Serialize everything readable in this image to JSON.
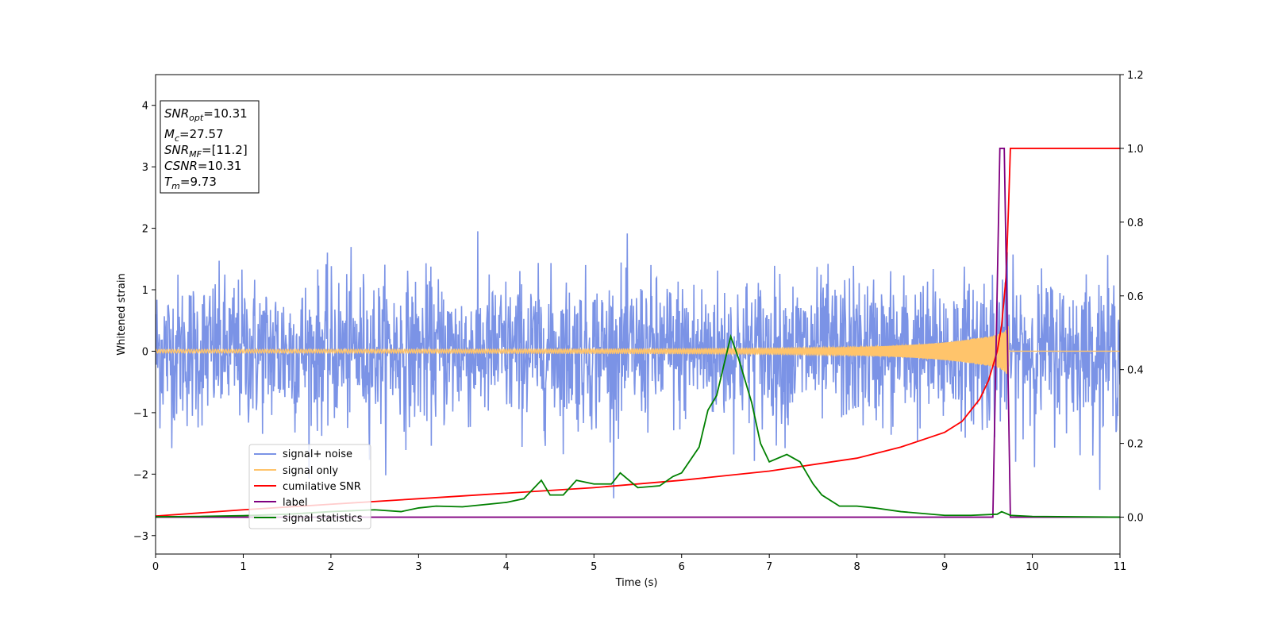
{
  "chart_data": {
    "type": "line",
    "xlabel": "Time (s)",
    "ylabel": "Whitened strain",
    "xlim": [
      0,
      11
    ],
    "ylim_left": [
      -3.3,
      4.5
    ],
    "ylim_right": [
      -0.1,
      1.2
    ],
    "x_ticks": [
      "0",
      "1",
      "2",
      "3",
      "4",
      "5",
      "6",
      "7",
      "8",
      "9",
      "10",
      "11"
    ],
    "y_ticks_left": [
      "−3",
      "−2",
      "−1",
      "0",
      "1",
      "2",
      "3",
      "4"
    ],
    "y_ticks_right": [
      "0.0",
      "0.2",
      "0.4",
      "0.6",
      "0.8",
      "1.0",
      "1.2"
    ],
    "info_box": {
      "snr_opt": {
        "sym": "SNR",
        "sub": "opt",
        "value": "=10.31"
      },
      "mc": {
        "sym": "M",
        "sub": "c",
        "value": "=27.57"
      },
      "snr_mf": {
        "sym": "SNR",
        "sub": "MF",
        "value": "=[11.2]"
      },
      "csnr": {
        "sym": "CSNR",
        "sub": "",
        "value": "=10.31"
      },
      "tm": {
        "sym": "T",
        "sub": "m",
        "value": "=9.73"
      }
    },
    "legend": {
      "signal_noise": "signal+ noise",
      "signal_only": "signal only",
      "cumulative_snr": "cumilative SNR",
      "label": "label",
      "signal_statistics": "signal statistics"
    },
    "series": [
      {
        "name": "signal+ noise",
        "axis": "left",
        "color": "#7b93e6",
        "noise_sigma": 0.6,
        "sample_rate": 200
      },
      {
        "name": "signal only",
        "axis": "left",
        "color": "#ffc46b",
        "chirp_end": 9.73,
        "peak_amplitude": 0.45
      },
      {
        "name": "cumilative SNR",
        "axis": "right",
        "color": "#ff0000",
        "x": [
          0,
          1,
          2,
          3,
          4,
          5,
          6,
          7,
          8,
          8.5,
          9,
          9.2,
          9.4,
          9.5,
          9.6,
          9.65,
          9.7,
          9.73,
          9.75,
          11
        ],
        "y": [
          0.003,
          0.02,
          0.035,
          0.05,
          0.065,
          0.08,
          0.1,
          0.125,
          0.16,
          0.19,
          0.23,
          0.26,
          0.32,
          0.37,
          0.45,
          0.52,
          0.65,
          0.85,
          1.0,
          1.0
        ]
      },
      {
        "name": "label",
        "axis": "right",
        "color": "#800080",
        "x": [
          0,
          9.55,
          9.63,
          9.68,
          9.75,
          11
        ],
        "y": [
          0,
          0,
          1,
          1,
          0,
          0
        ]
      },
      {
        "name": "signal statistics",
        "axis": "right",
        "color": "#008000",
        "x": [
          0,
          0.5,
          1,
          1.5,
          2,
          2.5,
          2.8,
          3,
          3.2,
          3.5,
          4,
          4.2,
          4.4,
          4.5,
          4.65,
          4.8,
          5,
          5.2,
          5.3,
          5.5,
          5.75,
          5.9,
          6,
          6.2,
          6.3,
          6.4,
          6.5,
          6.56,
          6.65,
          6.8,
          6.9,
          7,
          7.2,
          7.35,
          7.5,
          7.6,
          7.8,
          8,
          8.2,
          8.5,
          9,
          9.3,
          9.6,
          9.65,
          9.75,
          10,
          11
        ],
        "y": [
          0.001,
          0.002,
          0.004,
          0.008,
          0.015,
          0.02,
          0.015,
          0.025,
          0.03,
          0.028,
          0.04,
          0.05,
          0.1,
          0.06,
          0.06,
          0.1,
          0.09,
          0.09,
          0.12,
          0.08,
          0.085,
          0.11,
          0.12,
          0.19,
          0.29,
          0.33,
          0.43,
          0.49,
          0.43,
          0.31,
          0.2,
          0.15,
          0.17,
          0.15,
          0.09,
          0.06,
          0.03,
          0.03,
          0.025,
          0.015,
          0.005,
          0.005,
          0.008,
          0.015,
          0.005,
          0.002,
          0.0
        ]
      }
    ]
  }
}
